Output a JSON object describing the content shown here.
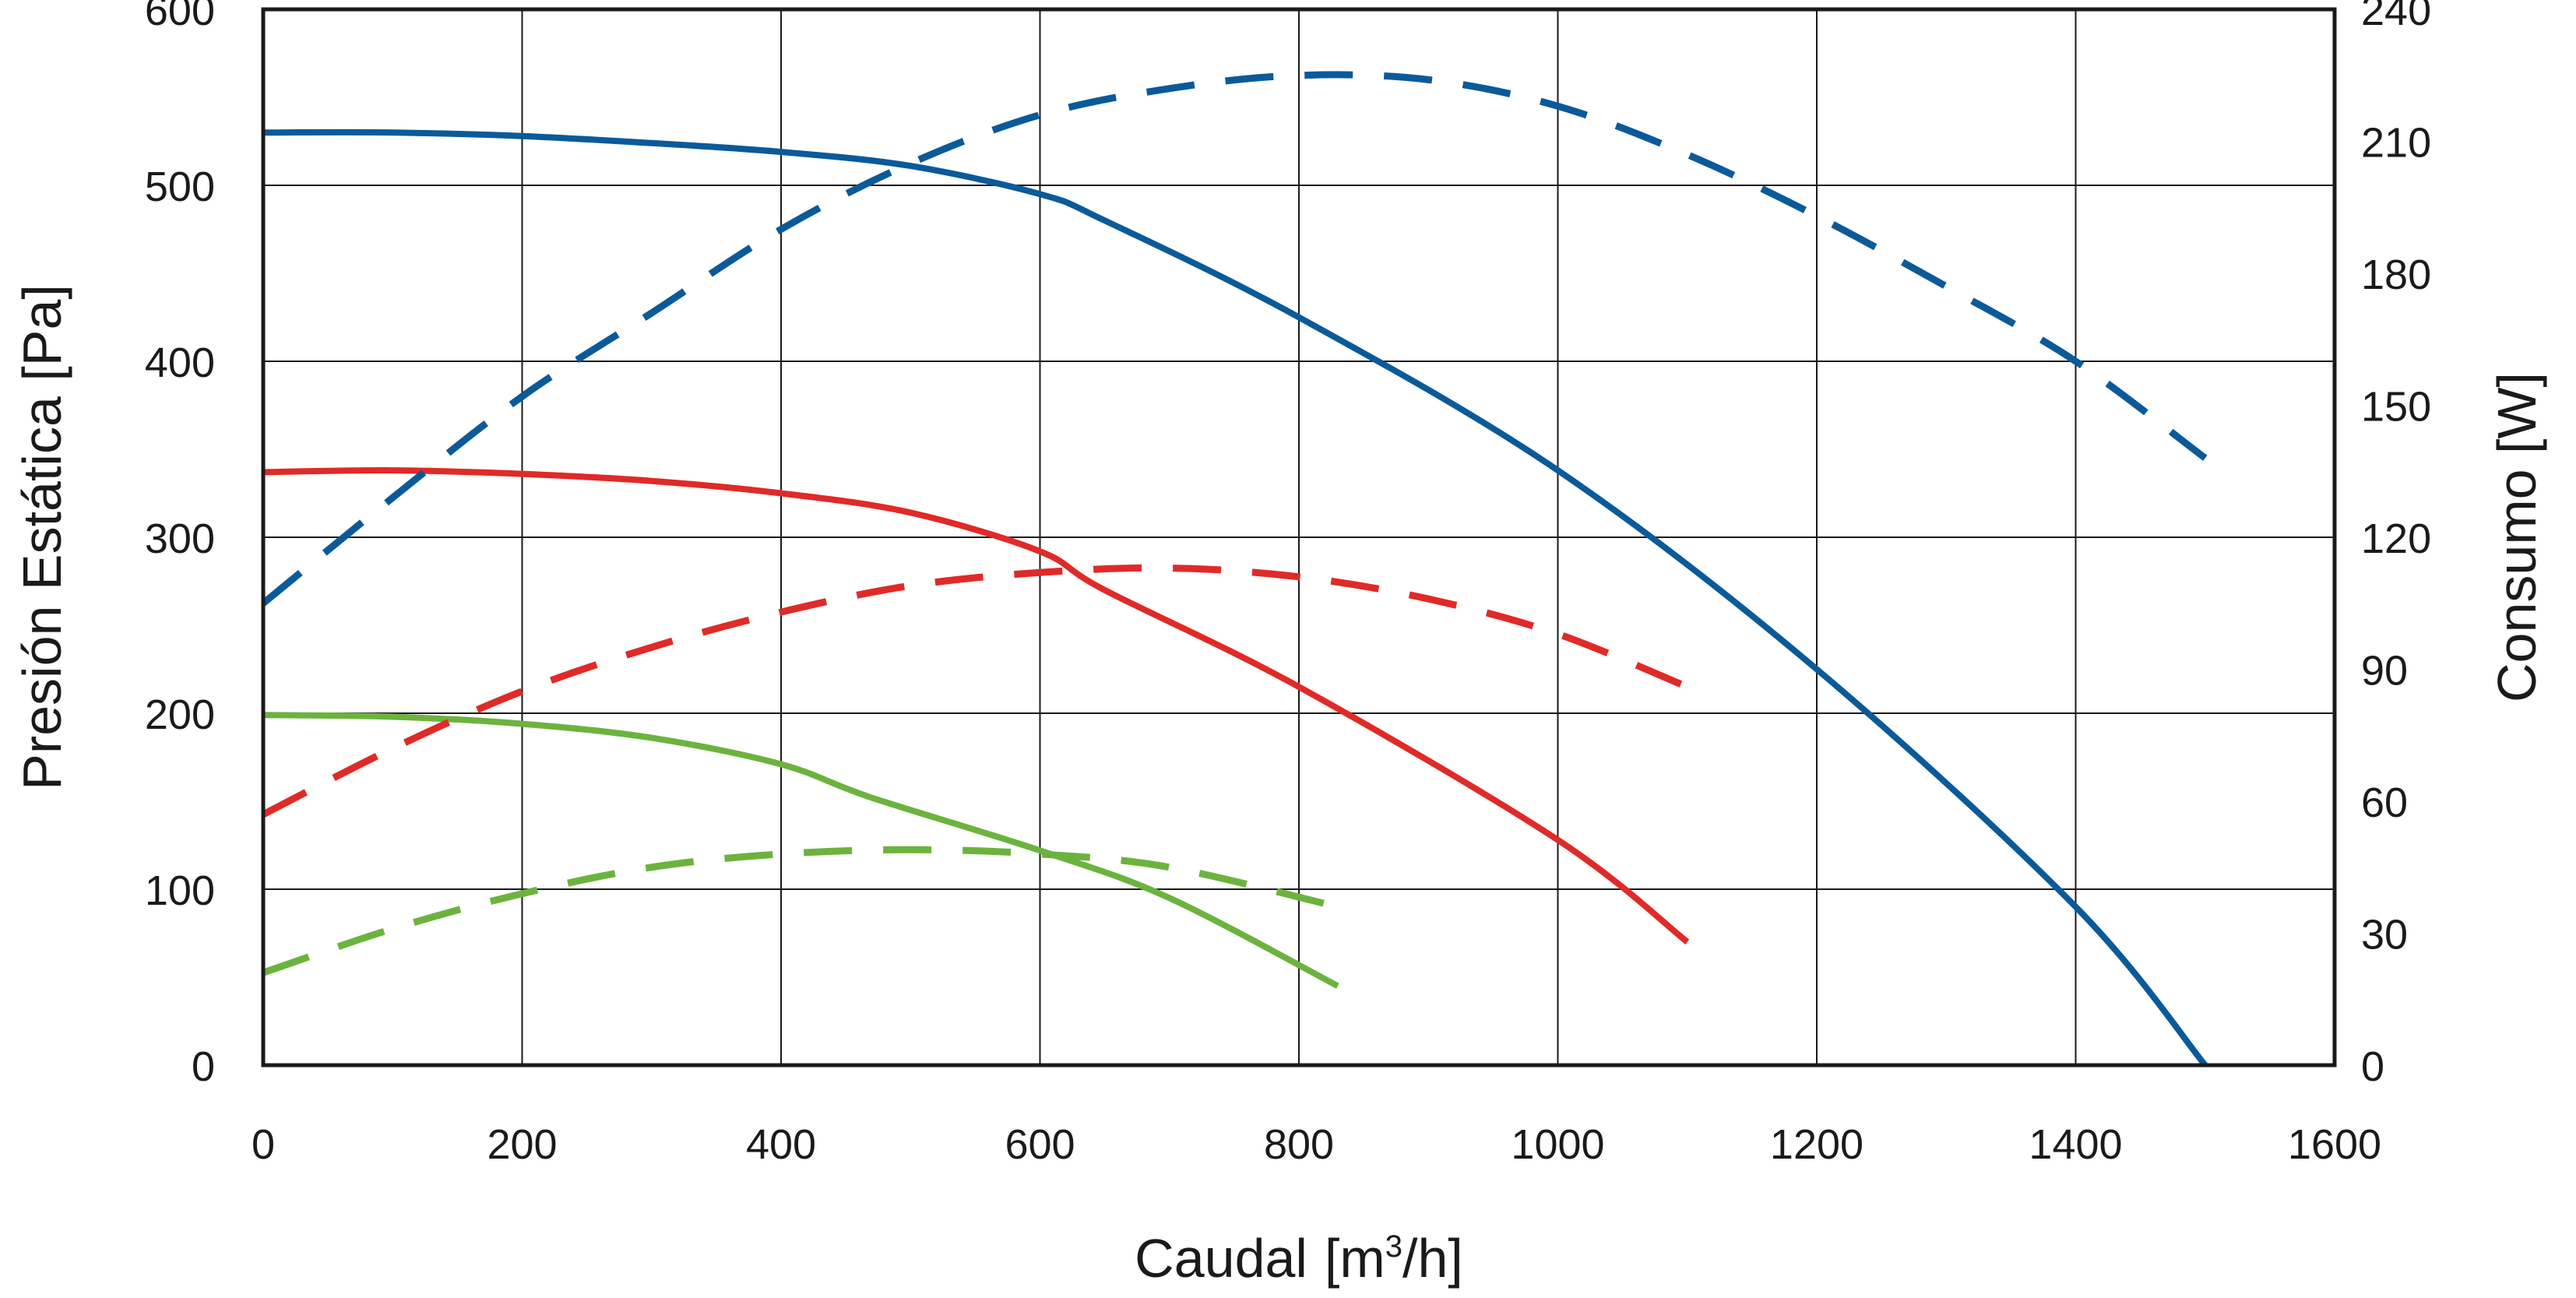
{
  "chart_data": {
    "type": "line",
    "title": "",
    "xlabel": "Caudal",
    "xlabel_unit_open": "[m",
    "xlabel_unit_sup": "3",
    "xlabel_unit_close": "/h]",
    "ylabel": "Presión Estática [Pa]",
    "y2label": "Consumo [W]",
    "xlim": [
      0,
      1600
    ],
    "ylim": [
      0,
      600
    ],
    "y2lim": [
      0,
      240
    ],
    "grid": true,
    "legend": "none",
    "x_ticks": [
      "0",
      "200",
      "400",
      "600",
      "800",
      "1000",
      "1200",
      "1400",
      "1600"
    ],
    "y_ticks": [
      "0",
      "100",
      "200",
      "300",
      "400",
      "500",
      "600"
    ],
    "y2_ticks": [
      "0",
      "30",
      "60",
      "90",
      "120",
      "150",
      "180",
      "210",
      "240"
    ],
    "series": [
      {
        "axis": "left",
        "style": "solid",
        "color": "#0a5a9a",
        "x": [
          0,
          100,
          200,
          300,
          400,
          500,
          600,
          650,
          800,
          1000,
          1200,
          1400,
          1500
        ],
        "y": [
          530,
          530,
          528,
          524,
          519,
          511,
          495,
          480,
          425,
          338,
          225,
          90,
          0
        ]
      },
      {
        "axis": "left",
        "style": "solid",
        "color": "#e02a28",
        "x": [
          0,
          100,
          200,
          300,
          400,
          500,
          600,
          650,
          800,
          1000,
          1100
        ],
        "y": [
          337,
          338,
          336,
          332,
          325,
          314,
          292,
          270,
          215,
          128,
          70
        ]
      },
      {
        "axis": "left",
        "style": "solid",
        "color": "#6cb33e",
        "x": [
          0,
          100,
          200,
          300,
          400,
          470,
          600,
          700,
          830
        ],
        "y": [
          199,
          198,
          194,
          186,
          171,
          152,
          122,
          95,
          45
        ]
      },
      {
        "axis": "right",
        "style": "dashed",
        "color": "#0a5a9a",
        "x": [
          0,
          100,
          200,
          300,
          400,
          500,
          600,
          700,
          800,
          900,
          1000,
          1100,
          1200,
          1300,
          1400,
          1500
        ],
        "y": [
          105,
          129,
          152,
          171,
          190,
          205,
          216,
          222,
          225,
          224,
          218,
          207,
          193,
          177,
          160,
          138
        ]
      },
      {
        "axis": "right",
        "style": "dashed",
        "color": "#e02a28",
        "x": [
          0,
          100,
          200,
          300,
          400,
          500,
          600,
          700,
          800,
          900,
          1000,
          1100
        ],
        "y": [
          57,
          72,
          85,
          95,
          103,
          109,
          112,
          113,
          111,
          106,
          98,
          86
        ]
      },
      {
        "axis": "right",
        "style": "dashed",
        "color": "#6cb33e",
        "x": [
          0,
          100,
          200,
          300,
          400,
          500,
          600,
          700,
          830
        ],
        "y": [
          21,
          31,
          39,
          45,
          48,
          49,
          48,
          45,
          36
        ]
      }
    ]
  }
}
